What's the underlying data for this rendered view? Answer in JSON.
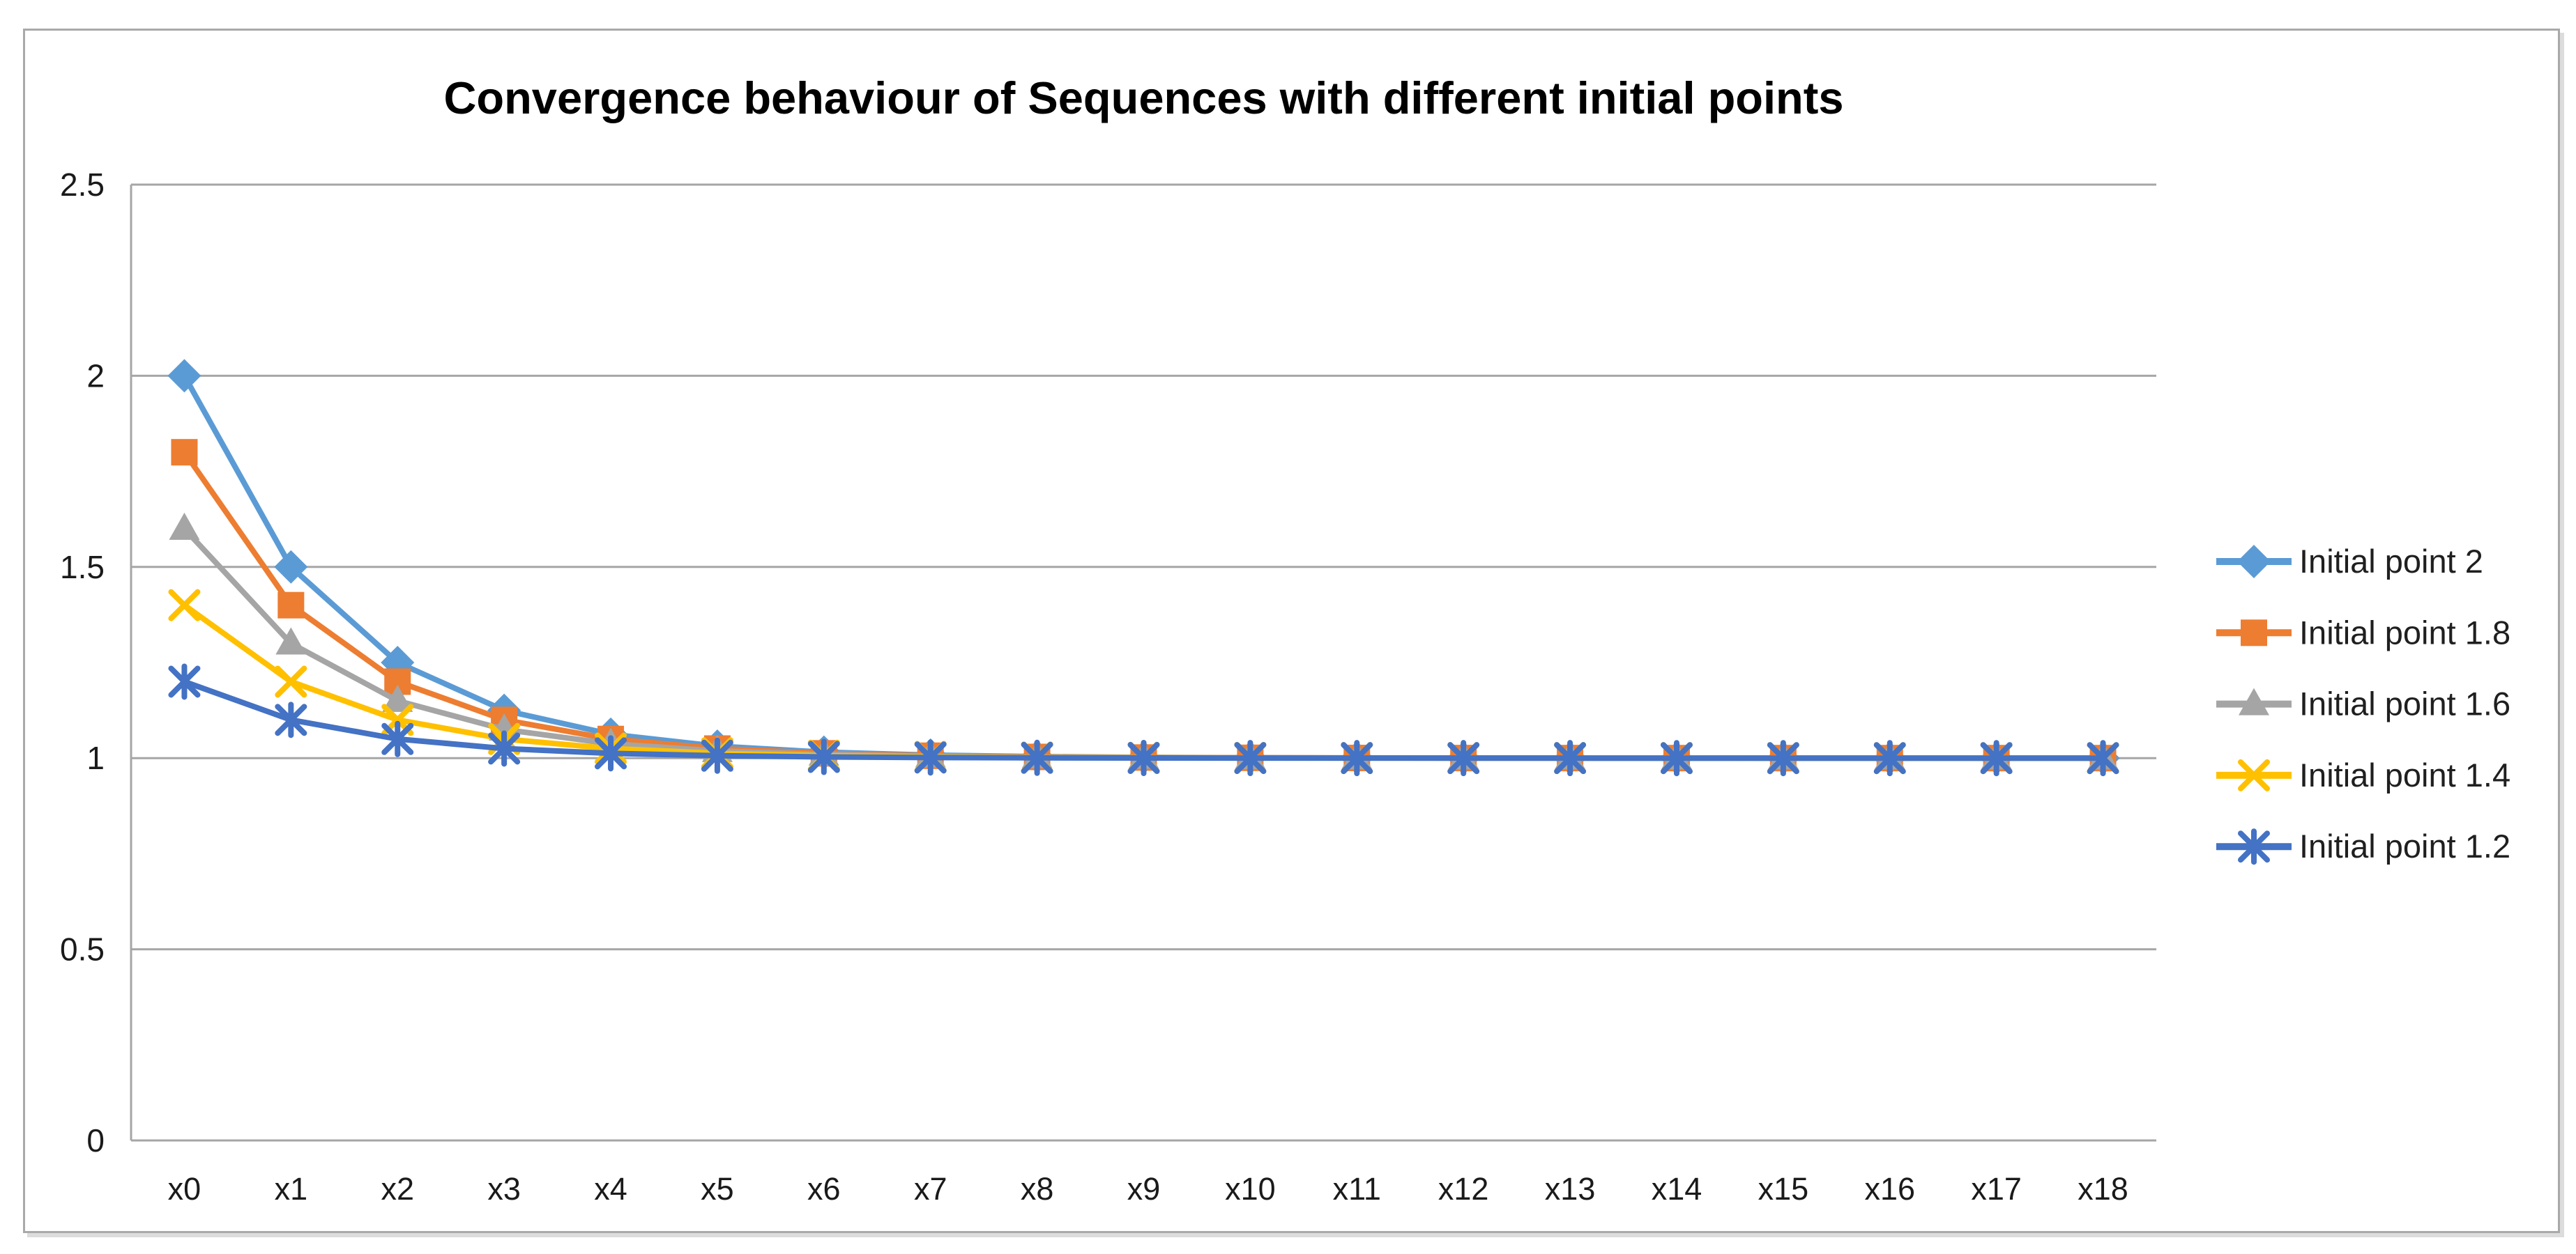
{
  "chart_data": {
    "type": "line",
    "title": "Convergence behaviour of Sequences with different initial points",
    "categories": [
      "x0",
      "x1",
      "x2",
      "x3",
      "x4",
      "x5",
      "x6",
      "x7",
      "x8",
      "x9",
      "x10",
      "x11",
      "x12",
      "x13",
      "x14",
      "x15",
      "x16",
      "x17",
      "x18"
    ],
    "series": [
      {
        "name": "Initial point 2",
        "color": "#5B9BD5",
        "marker": "diamond",
        "values": [
          2,
          1.5,
          1.25,
          1.125,
          1.0625,
          1.03125,
          1.015625,
          1.007813,
          1.003906,
          1.001953,
          1.000977,
          1.000488,
          1.000244,
          1.000122,
          1.000061,
          1.000031,
          1.000015,
          1.000008,
          1.000004
        ]
      },
      {
        "name": "Initial point 1.8",
        "color": "#ED7D31",
        "marker": "square",
        "values": [
          1.8,
          1.4,
          1.2,
          1.1,
          1.05,
          1.025,
          1.0125,
          1.00625,
          1.003125,
          1.001563,
          1.000781,
          1.000391,
          1.000195,
          1.000098,
          1.000049,
          1.000024,
          1.000012,
          1.000006,
          1.000003
        ]
      },
      {
        "name": "Initial point 1.6",
        "color": "#A5A5A5",
        "marker": "triangle",
        "values": [
          1.6,
          1.3,
          1.15,
          1.075,
          1.0375,
          1.01875,
          1.009375,
          1.004688,
          1.002344,
          1.001172,
          1.000586,
          1.000293,
          1.000146,
          1.000073,
          1.000037,
          1.000018,
          1.000009,
          1.000005,
          1.000002
        ]
      },
      {
        "name": "Initial point 1.4",
        "color": "#FFC000",
        "marker": "x",
        "values": [
          1.4,
          1.2,
          1.1,
          1.05,
          1.025,
          1.0125,
          1.00625,
          1.003125,
          1.001563,
          1.000781,
          1.000391,
          1.000195,
          1.000098,
          1.000049,
          1.000024,
          1.000012,
          1.000006,
          1.000003,
          1.000002
        ]
      },
      {
        "name": "Initial point 1.2",
        "color": "#4472C4",
        "marker": "asterisk",
        "values": [
          1.2,
          1.1,
          1.05,
          1.025,
          1.0125,
          1.00625,
          1.003125,
          1.001563,
          1.000781,
          1.000391,
          1.000195,
          1.000098,
          1.000049,
          1.000024,
          1.000012,
          1.000006,
          1.000003,
          1.000002,
          1.000001
        ]
      }
    ],
    "ylim": [
      0,
      2.5
    ],
    "yticks": [
      0,
      0.5,
      1,
      1.5,
      2,
      2.5
    ],
    "ytick_labels": [
      "0",
      "0.5",
      "1",
      "1.5",
      "2",
      "2.5"
    ],
    "grid": "horizontal-only",
    "legend_position": "right",
    "gridline_color": "#A6A6A6",
    "axis_color": "#A6A6A6",
    "tick_label_color": "#1a1a1a",
    "legend_text_color": "#1f1f1f"
  }
}
